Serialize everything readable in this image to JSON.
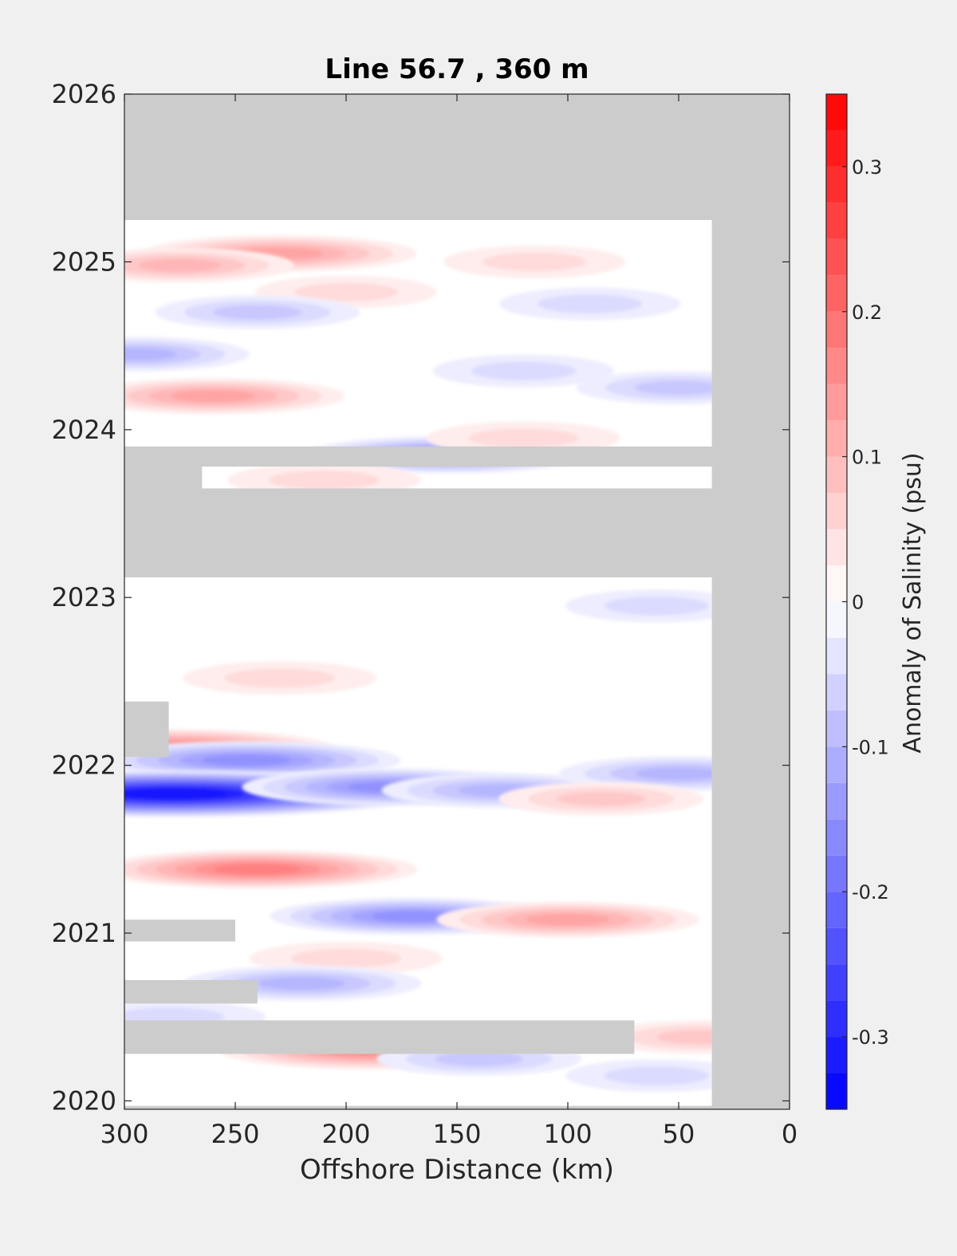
{
  "chart_data": {
    "type": "heatmap",
    "title": "Line 56.7 , 360 m",
    "xlabel": "Offshore Distance (km)",
    "ylabel": "",
    "colorbar_label": "Anomaly of Salinity (psu)",
    "xlim": [
      300,
      0
    ],
    "ylim": [
      2019.95,
      2026
    ],
    "x_reversed": true,
    "x_ticks": [
      300,
      250,
      200,
      150,
      100,
      50,
      0
    ],
    "y_ticks": [
      2020,
      2021,
      2022,
      2023,
      2024,
      2025,
      2026
    ],
    "colorbar_range": [
      -0.35,
      0.35
    ],
    "colorbar_ticks": [
      -0.3,
      -0.2,
      -0.1,
      0,
      0.1,
      0.2,
      0.3
    ],
    "colorbar_levels": 28,
    "colors": {
      "positive": "#ff0000",
      "negative": "#0000ff",
      "neutral": "#ffffff",
      "missing": "#cccccc",
      "figure_background": "#f0f0f0"
    },
    "data_extent": {
      "x": [
        300,
        35
      ],
      "y": [
        2019.97,
        2025.25
      ]
    },
    "no_data_regions": [
      {
        "x": [
          300,
          0
        ],
        "y": [
          2025.25,
          2026
        ]
      },
      {
        "x": [
          35,
          0
        ],
        "y": [
          2019.95,
          2026
        ]
      },
      {
        "x": [
          300,
          35
        ],
        "y": [
          2023.12,
          2023.65
        ]
      },
      {
        "x": [
          300,
          35
        ],
        "y": [
          2023.78,
          2023.9
        ]
      },
      {
        "x": [
          300,
          265
        ],
        "y": [
          2023.65,
          2023.78
        ]
      },
      {
        "x": [
          300,
          280
        ],
        "y": [
          2022.05,
          2022.38
        ]
      },
      {
        "x": [
          300,
          250
        ],
        "y": [
          2020.95,
          2021.08
        ]
      },
      {
        "x": [
          300,
          240
        ],
        "y": [
          2020.58,
          2020.72
        ]
      },
      {
        "x": [
          300,
          70
        ],
        "y": [
          2020.28,
          2020.48
        ]
      }
    ],
    "anomalies": [
      {
        "x": 230,
        "y": 2025.05,
        "value": 0.13
      },
      {
        "x": 275,
        "y": 2024.98,
        "value": 0.09
      },
      {
        "x": 115,
        "y": 2025.0,
        "value": 0.05
      },
      {
        "x": 200,
        "y": 2024.82,
        "value": 0.05
      },
      {
        "x": 240,
        "y": 2024.7,
        "value": -0.07
      },
      {
        "x": 90,
        "y": 2024.75,
        "value": -0.05
      },
      {
        "x": 295,
        "y": 2024.45,
        "value": -0.09
      },
      {
        "x": 260,
        "y": 2024.2,
        "value": 0.12
      },
      {
        "x": 120,
        "y": 2024.35,
        "value": -0.05
      },
      {
        "x": 50,
        "y": 2024.25,
        "value": -0.07
      },
      {
        "x": 155,
        "y": 2023.85,
        "value": -0.14
      },
      {
        "x": 210,
        "y": 2023.7,
        "value": 0.06
      },
      {
        "x": 120,
        "y": 2023.95,
        "value": 0.06
      },
      {
        "x": 60,
        "y": 2022.95,
        "value": -0.05
      },
      {
        "x": 230,
        "y": 2022.52,
        "value": 0.06
      },
      {
        "x": 280,
        "y": 2022.1,
        "value": 0.18
      },
      {
        "x": 245,
        "y": 2022.03,
        "value": -0.16
      },
      {
        "x": 278,
        "y": 2021.83,
        "value": -0.33
      },
      {
        "x": 180,
        "y": 2021.87,
        "value": -0.15
      },
      {
        "x": 130,
        "y": 2021.85,
        "value": -0.1
      },
      {
        "x": 50,
        "y": 2021.95,
        "value": -0.1
      },
      {
        "x": 85,
        "y": 2021.8,
        "value": 0.07
      },
      {
        "x": 240,
        "y": 2021.38,
        "value": 0.17
      },
      {
        "x": 170,
        "y": 2021.1,
        "value": -0.14
      },
      {
        "x": 100,
        "y": 2021.08,
        "value": 0.12
      },
      {
        "x": 200,
        "y": 2020.85,
        "value": 0.06
      },
      {
        "x": 220,
        "y": 2020.7,
        "value": -0.1
      },
      {
        "x": 190,
        "y": 2020.3,
        "value": 0.15
      },
      {
        "x": 140,
        "y": 2020.25,
        "value": -0.07
      },
      {
        "x": 60,
        "y": 2020.15,
        "value": -0.05
      },
      {
        "x": 280,
        "y": 2020.5,
        "value": -0.06
      },
      {
        "x": 40,
        "y": 2020.38,
        "value": 0.07
      }
    ]
  }
}
